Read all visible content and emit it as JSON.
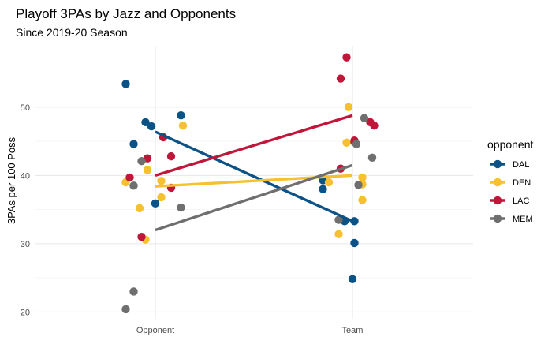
{
  "chart_data": {
    "type": "scatter",
    "title": "Playoff 3PAs by Jazz and Opponents",
    "subtitle": "Since 2019-20 Season",
    "ylabel": "3PAs per 100 Poss",
    "xlabel": "",
    "categories": [
      "Opponent",
      "Team"
    ],
    "yticks": [
      20,
      30,
      40,
      50
    ],
    "ylim": [
      19,
      59
    ],
    "grid": true,
    "legend": {
      "title": "opponent",
      "position": "right"
    },
    "series": [
      {
        "name": "DAL",
        "color": "#0b5286",
        "trend": [
          46.4,
          33.3
        ],
        "points": [
          {
            "x": "Opponent",
            "jitter": -0.15,
            "y": 53.4
          },
          {
            "x": "Opponent",
            "jitter": -0.11,
            "y": 44.6
          },
          {
            "x": "Opponent",
            "jitter": -0.05,
            "y": 47.8
          },
          {
            "x": "Opponent",
            "jitter": -0.02,
            "y": 47.2
          },
          {
            "x": "Opponent",
            "jitter": 0.0,
            "y": 35.9
          },
          {
            "x": "Opponent",
            "jitter": 0.13,
            "y": 48.8
          },
          {
            "x": "Team",
            "jitter": -0.15,
            "y": 39.3
          },
          {
            "x": "Team",
            "jitter": -0.15,
            "y": 38.0
          },
          {
            "x": "Team",
            "jitter": -0.04,
            "y": 33.3
          },
          {
            "x": "Team",
            "jitter": 0.01,
            "y": 33.3
          },
          {
            "x": "Team",
            "jitter": 0.01,
            "y": 30.1
          },
          {
            "x": "Team",
            "jitter": 0.0,
            "y": 24.8
          }
        ]
      },
      {
        "name": "DEN",
        "color": "#f6c030",
        "trend": [
          38.4,
          40.0
        ],
        "points": [
          {
            "x": "Opponent",
            "jitter": -0.15,
            "y": 39.0
          },
          {
            "x": "Opponent",
            "jitter": -0.08,
            "y": 35.2
          },
          {
            "x": "Opponent",
            "jitter": -0.04,
            "y": 40.8
          },
          {
            "x": "Opponent",
            "jitter": -0.05,
            "y": 30.6
          },
          {
            "x": "Opponent",
            "jitter": 0.03,
            "y": 39.2
          },
          {
            "x": "Opponent",
            "jitter": 0.03,
            "y": 36.8
          },
          {
            "x": "Opponent",
            "jitter": 0.14,
            "y": 47.3
          },
          {
            "x": "Team",
            "jitter": -0.12,
            "y": 39.0
          },
          {
            "x": "Team",
            "jitter": -0.07,
            "y": 31.4
          },
          {
            "x": "Team",
            "jitter": -0.03,
            "y": 44.8
          },
          {
            "x": "Team",
            "jitter": -0.02,
            "y": 50.0
          },
          {
            "x": "Team",
            "jitter": 0.05,
            "y": 38.7
          },
          {
            "x": "Team",
            "jitter": 0.05,
            "y": 36.4
          },
          {
            "x": "Team",
            "jitter": 0.05,
            "y": 39.7
          }
        ]
      },
      {
        "name": "LAC",
        "color": "#c0163a",
        "trend": [
          40.0,
          48.8
        ],
        "points": [
          {
            "x": "Opponent",
            "jitter": -0.13,
            "y": 39.7
          },
          {
            "x": "Opponent",
            "jitter": -0.07,
            "y": 31.0
          },
          {
            "x": "Opponent",
            "jitter": -0.04,
            "y": 42.5
          },
          {
            "x": "Opponent",
            "jitter": 0.04,
            "y": 45.6
          },
          {
            "x": "Opponent",
            "jitter": 0.08,
            "y": 42.8
          },
          {
            "x": "Opponent",
            "jitter": 0.08,
            "y": 38.2
          },
          {
            "x": "Team",
            "jitter": -0.06,
            "y": 54.2
          },
          {
            "x": "Team",
            "jitter": -0.03,
            "y": 57.3
          },
          {
            "x": "Team",
            "jitter": -0.06,
            "y": 41.0
          },
          {
            "x": "Team",
            "jitter": 0.01,
            "y": 44.9
          },
          {
            "x": "Team",
            "jitter": 0.01,
            "y": 45.1
          },
          {
            "x": "Team",
            "jitter": 0.09,
            "y": 47.8
          },
          {
            "x": "Team",
            "jitter": 0.11,
            "y": 47.3
          }
        ]
      },
      {
        "name": "MEM",
        "color": "#6f6f6f",
        "trend": [
          32.0,
          41.5
        ],
        "points": [
          {
            "x": "Opponent",
            "jitter": -0.15,
            "y": 20.4
          },
          {
            "x": "Opponent",
            "jitter": -0.11,
            "y": 23.0
          },
          {
            "x": "Opponent",
            "jitter": -0.11,
            "y": 38.5
          },
          {
            "x": "Opponent",
            "jitter": -0.07,
            "y": 42.1
          },
          {
            "x": "Opponent",
            "jitter": 0.13,
            "y": 35.3
          },
          {
            "x": "Team",
            "jitter": -0.07,
            "y": 33.5
          },
          {
            "x": "Team",
            "jitter": 0.03,
            "y": 38.6
          },
          {
            "x": "Team",
            "jitter": 0.06,
            "y": 48.4
          },
          {
            "x": "Team",
            "jitter": 0.1,
            "y": 42.6
          },
          {
            "x": "Team",
            "jitter": 0.02,
            "y": 44.6
          }
        ]
      }
    ]
  }
}
